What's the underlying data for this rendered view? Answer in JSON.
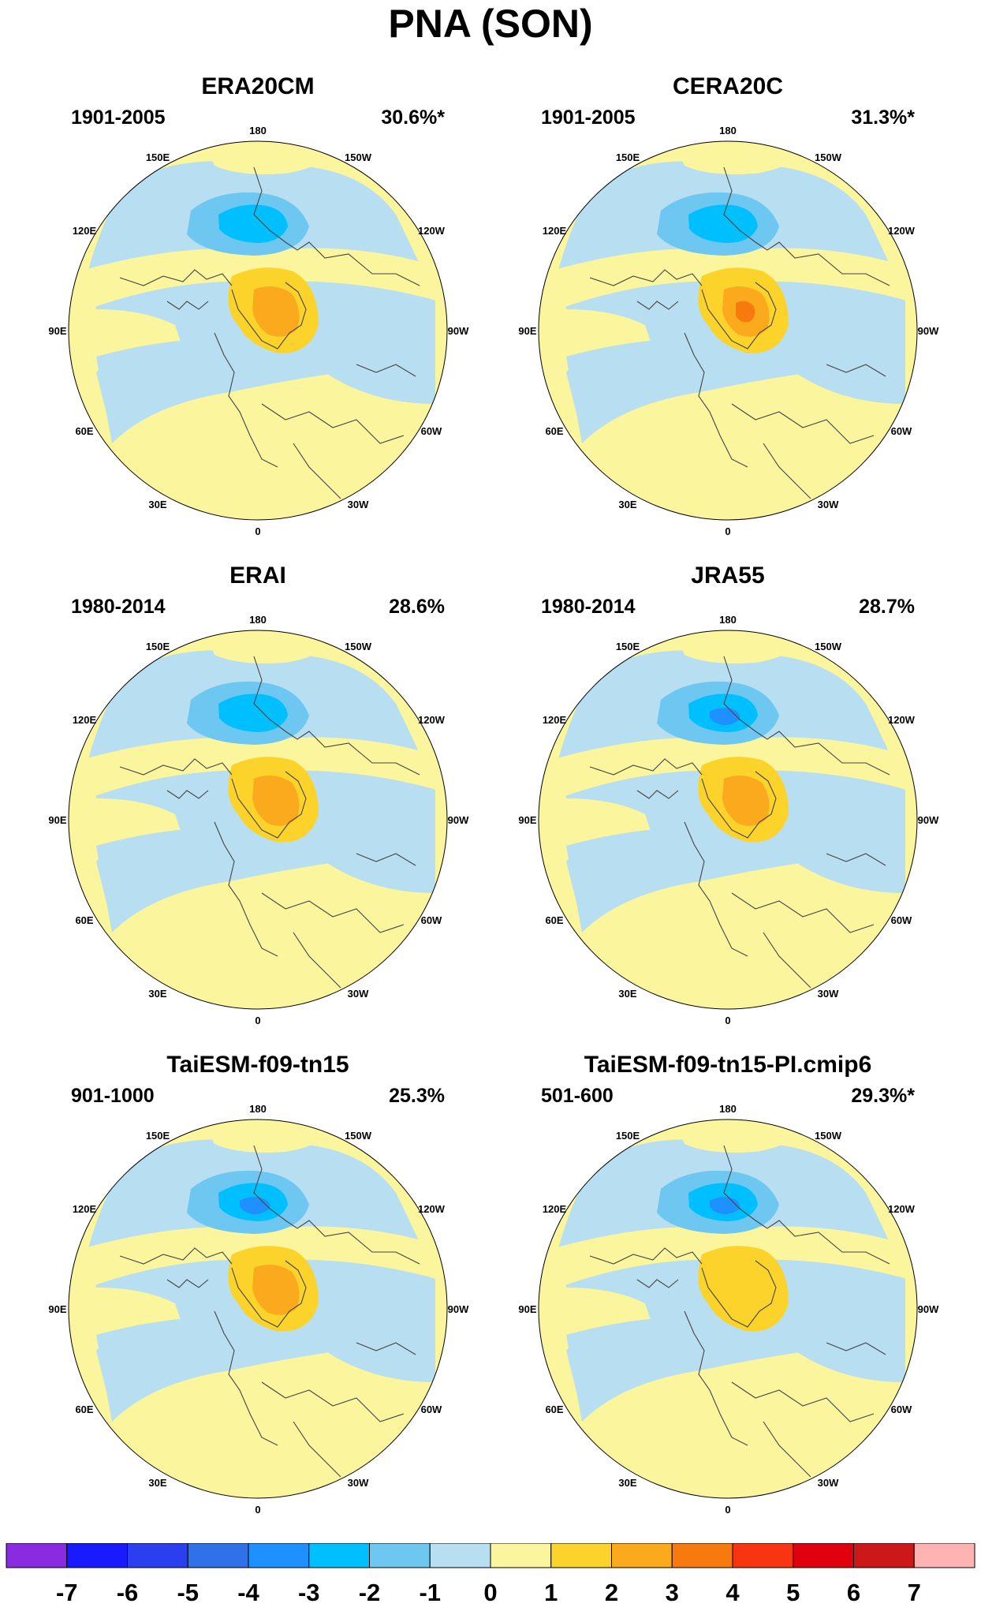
{
  "figure": {
    "title": "PNA (SON)"
  },
  "lon_labels": [
    {
      "text": "180",
      "deg": 180
    },
    {
      "text": "150W",
      "deg": -150
    },
    {
      "text": "150E",
      "deg": 150
    },
    {
      "text": "120W",
      "deg": -120
    },
    {
      "text": "120E",
      "deg": 120
    },
    {
      "text": "90W",
      "deg": -90
    },
    {
      "text": "90E",
      "deg": 90
    },
    {
      "text": "60W",
      "deg": -60
    },
    {
      "text": "60E",
      "deg": 60
    },
    {
      "text": "30W",
      "deg": -30
    },
    {
      "text": "30E",
      "deg": 30
    },
    {
      "text": "0",
      "deg": 0
    }
  ],
  "panels": [
    {
      "title": "ERA20CM",
      "period": "1901-2005",
      "variance": "30.6%*",
      "neg_peak": -3,
      "pos_peak": 2
    },
    {
      "title": "CERA20C",
      "period": "1901-2005",
      "variance": "31.3%*",
      "neg_peak": -3,
      "pos_peak": 3
    },
    {
      "title": "ERAI",
      "period": "1980-2014",
      "variance": "28.6%",
      "neg_peak": -3,
      "pos_peak": 2
    },
    {
      "title": "JRA55",
      "period": "1980-2014",
      "variance": "28.7%",
      "neg_peak": -4,
      "pos_peak": 2
    },
    {
      "title": "TaiESM-f09-tn15",
      "period": "901-1000",
      "variance": "25.3%",
      "neg_peak": -4,
      "pos_peak": 2
    },
    {
      "title": "TaiESM-f09-tn15-PI.cmip6",
      "period": "501-600",
      "variance": "29.3%*",
      "neg_peak": -4,
      "pos_peak": 1
    }
  ],
  "colorbar": {
    "labels": [
      "-7",
      "-6",
      "-5",
      "-4",
      "-3",
      "-2",
      "-1",
      "0",
      "1",
      "2",
      "3",
      "4",
      "5",
      "6",
      "7"
    ],
    "colors": [
      "#8a2be2",
      "#1a1aff",
      "#2a3ff0",
      "#3070e8",
      "#1e90ff",
      "#00bfff",
      "#6dc7f0",
      "#b8def2",
      "#fbf59e",
      "#fcd32b",
      "#fba91d",
      "#f87a0f",
      "#f93410",
      "#e0000e",
      "#cc1818",
      "#ffb3b3"
    ]
  },
  "style": {
    "land_line": "#444444",
    "neg_colors": {
      "-1": "#b8def2",
      "-2": "#6dc7f0",
      "-3": "#00bfff",
      "-4": "#1e90ff"
    },
    "pos_colors": {
      "0": "#fbf59e",
      "1": "#fcd32b",
      "2": "#fba91d",
      "3": "#f87a0f"
    }
  }
}
